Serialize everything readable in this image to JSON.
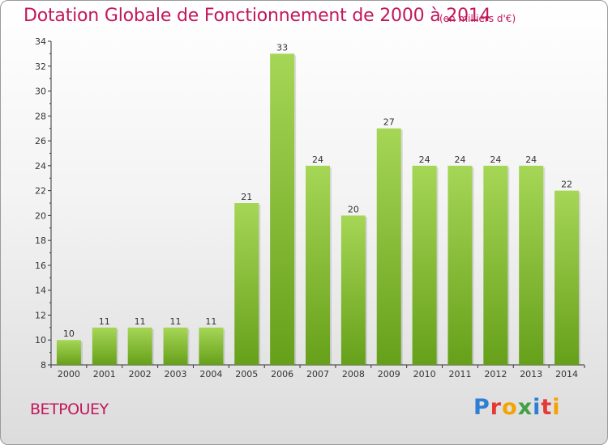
{
  "title": "Dotation Globale de Fonctionnement de 2000 à 2014",
  "subtitle": "(en milliers d'€)",
  "commune": "BETPOUEY",
  "logo": {
    "letters": [
      "P",
      "r",
      "o",
      "x",
      "i",
      "t",
      "i"
    ],
    "colors": [
      "#2e7fd3",
      "#e53935",
      "#f4a300",
      "#43a047",
      "#2e7fd3",
      "#e53935",
      "#f4a300"
    ]
  },
  "colors": {
    "title": "#c2185b",
    "bar_light": "#a6d656",
    "bar_dark": "#66a01a",
    "axis": "#333333",
    "grid": "#999999"
  },
  "chart_data": {
    "type": "bar",
    "categories": [
      "2000",
      "2001",
      "2002",
      "2003",
      "2004",
      "2005",
      "2006",
      "2007",
      "2008",
      "2009",
      "2010",
      "2011",
      "2012",
      "2013",
      "2014"
    ],
    "values": [
      10,
      11,
      11,
      11,
      11,
      21,
      33,
      24,
      20,
      27,
      24,
      24,
      24,
      24,
      22
    ],
    "ylim": [
      8,
      34
    ],
    "yticks": [
      8,
      10,
      12,
      14,
      16,
      18,
      20,
      22,
      24,
      26,
      28,
      30,
      32,
      34
    ],
    "grid": false,
    "data_labels": true
  }
}
